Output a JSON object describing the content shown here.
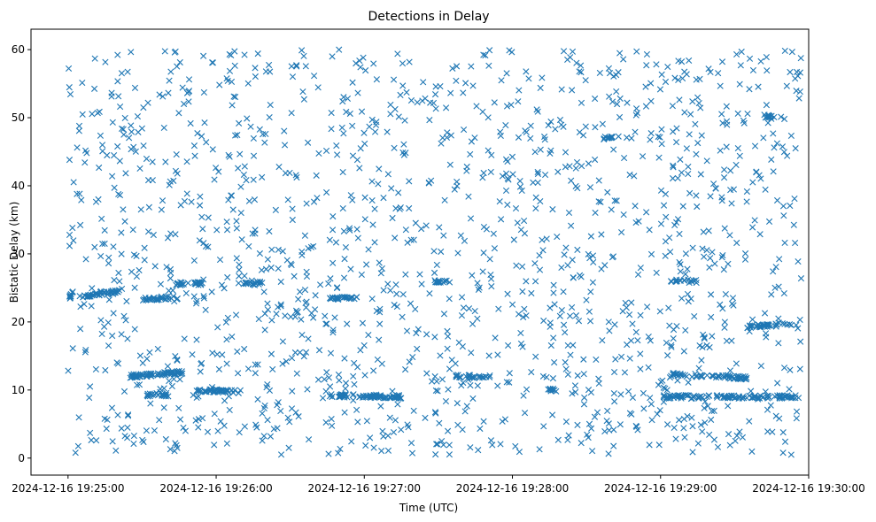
{
  "chart_data": {
    "type": "scatter",
    "title": "Detections in Delay",
    "xlabel": "Time (UTC)",
    "ylabel": "Bistatic Delay (km)",
    "x_unit": "seconds after 2024-12-16 19:24:45 UTC",
    "xlim": [
      0,
      315
    ],
    "ylim": [
      -2.5,
      63
    ],
    "x_tick_values": [
      15,
      75,
      135,
      195,
      255,
      315
    ],
    "x_tick_labels": [
      "2024-12-16 19:25:00",
      "2024-12-16 19:26:00",
      "2024-12-16 19:27:00",
      "2024-12-16 19:28:00",
      "2024-12-16 19:29:00",
      "2024-12-16 19:30:00"
    ],
    "y_ticks": [
      0,
      10,
      20,
      30,
      40,
      50,
      60
    ],
    "grid": false,
    "marker": "x",
    "color": "#1f77b4",
    "scatter_generation": {
      "x_range": [
        15,
        312
      ],
      "y_range": [
        0.5,
        60
      ],
      "uniform_point_count": 1500,
      "dense_track_segments": [
        {
          "x_start": 15,
          "x_end": 18,
          "y_start": 23.2,
          "y_end": 25.0,
          "count": 10
        },
        {
          "x_start": 20,
          "x_end": 37,
          "y_start": 23.8,
          "y_end": 24.5,
          "count": 45
        },
        {
          "x_start": 40,
          "x_end": 62,
          "y_start": 12.0,
          "y_end": 12.6,
          "count": 70
        },
        {
          "x_start": 45,
          "x_end": 58,
          "y_start": 23.3,
          "y_end": 23.6,
          "count": 30
        },
        {
          "x_start": 58,
          "x_end": 70,
          "y_start": 25.6,
          "y_end": 25.6,
          "count": 25
        },
        {
          "x_start": 47,
          "x_end": 57,
          "y_start": 9.3,
          "y_end": 9.3,
          "count": 20
        },
        {
          "x_start": 67,
          "x_end": 85,
          "y_start": 10.0,
          "y_end": 9.7,
          "count": 45
        },
        {
          "x_start": 85,
          "x_end": 98,
          "y_start": 25.5,
          "y_end": 25.8,
          "count": 18
        },
        {
          "x_start": 121,
          "x_end": 150,
          "y_start": 9.2,
          "y_end": 9.0,
          "count": 70
        },
        {
          "x_start": 121,
          "x_end": 132,
          "y_start": 23.5,
          "y_end": 23.5,
          "count": 25
        },
        {
          "x_start": 172,
          "x_end": 186,
          "y_start": 12.0,
          "y_end": 12.0,
          "count": 25
        },
        {
          "x_start": 163,
          "x_end": 170,
          "y_start": 26.0,
          "y_end": 26.0,
          "count": 15
        },
        {
          "x_start": 209,
          "x_end": 213,
          "y_start": 10.0,
          "y_end": 10.0,
          "count": 10
        },
        {
          "x_start": 260,
          "x_end": 290,
          "y_start": 12.3,
          "y_end": 11.8,
          "count": 60
        },
        {
          "x_start": 256,
          "x_end": 312,
          "y_start": 9.0,
          "y_end": 9.0,
          "count": 110
        },
        {
          "x_start": 290,
          "x_end": 308,
          "y_start": 19.3,
          "y_end": 19.7,
          "count": 35
        },
        {
          "x_start": 297,
          "x_end": 302,
          "y_start": 50.2,
          "y_end": 50.0,
          "count": 12
        },
        {
          "x_start": 259,
          "x_end": 270,
          "y_start": 26.0,
          "y_end": 26.0,
          "count": 18
        },
        {
          "x_start": 232,
          "x_end": 238,
          "y_start": 47.0,
          "y_end": 47.0,
          "count": 10
        }
      ]
    }
  }
}
